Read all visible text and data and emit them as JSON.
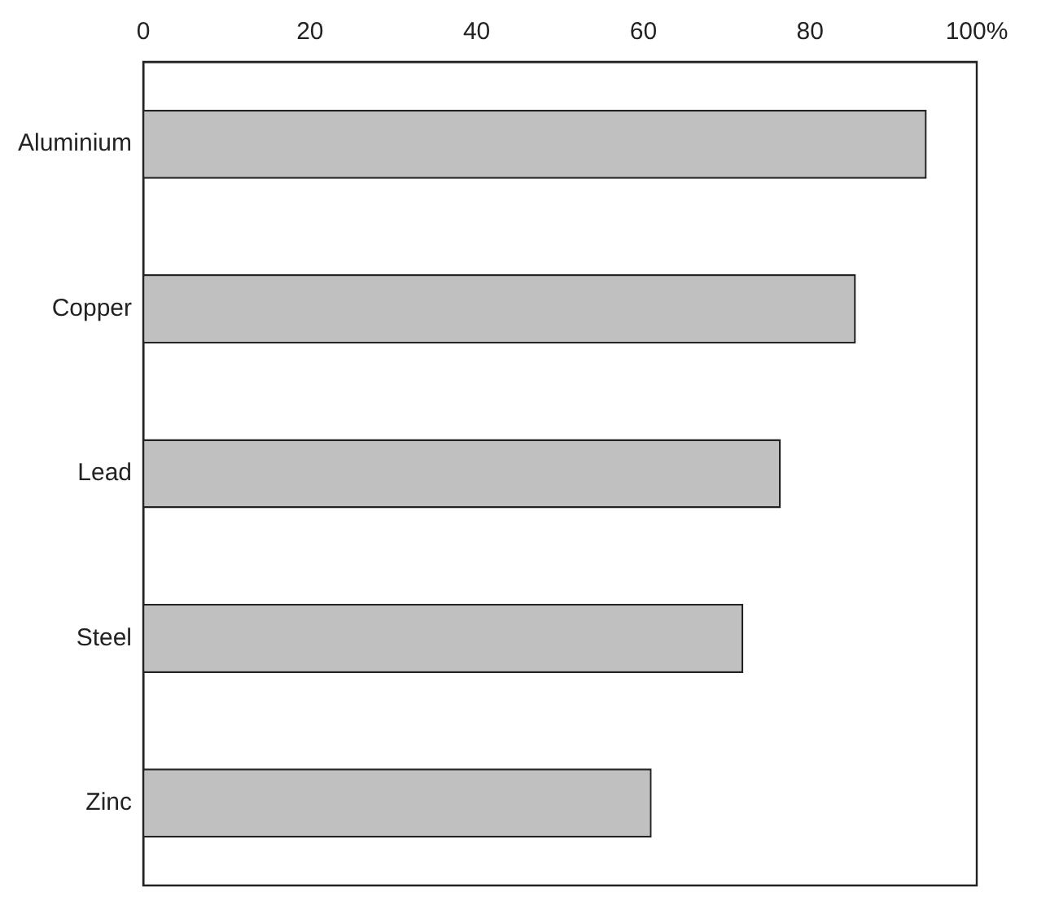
{
  "chart_data": {
    "type": "bar",
    "orientation": "horizontal",
    "categories": [
      "Aluminium",
      "Copper",
      "Lead",
      "Steel",
      "Zinc"
    ],
    "values": [
      94,
      85.5,
      76.5,
      72,
      61
    ],
    "color": "#c0c0c0",
    "xlim": [
      0,
      100
    ],
    "xticks": [
      0,
      20,
      40,
      60,
      80,
      {
        "value": 100,
        "label": "100%"
      }
    ],
    "grid": false,
    "legend": false
  }
}
